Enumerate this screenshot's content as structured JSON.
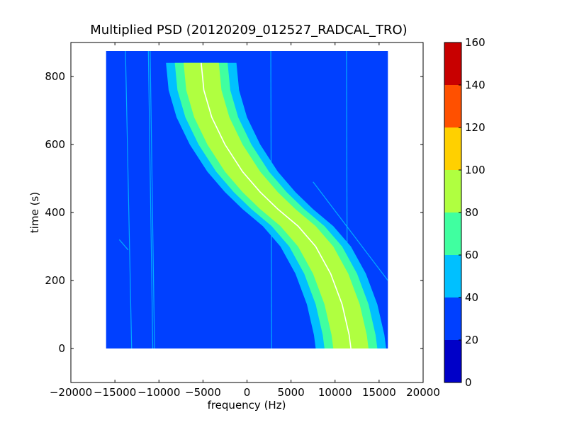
{
  "chart_data": {
    "type": "heatmap",
    "title": "Multiplied PSD (20120209_012527_RADCAL_TRO)",
    "xlabel": "frequency (Hz)",
    "ylabel": "time (s)",
    "xlim": [
      -20000,
      20000
    ],
    "ylim": [
      -100,
      900
    ],
    "x_ticks": [
      -20000,
      -15000,
      -10000,
      -5000,
      0,
      5000,
      10000,
      15000,
      20000
    ],
    "x_tick_labels": [
      "−20000",
      "−15000",
      "−10000",
      "−5000",
      "0",
      "5000",
      "10000",
      "15000",
      "20000"
    ],
    "y_ticks": [
      0,
      200,
      400,
      600,
      800
    ],
    "y_tick_labels": [
      "0",
      "200",
      "400",
      "600",
      "800"
    ],
    "data_extent": {
      "x": [
        -16000,
        16000
      ],
      "y": [
        0,
        875
      ]
    },
    "background_level": 30,
    "colorbar": {
      "range": [
        0,
        160
      ],
      "ticks": [
        0,
        20,
        40,
        60,
        80,
        100,
        120,
        140,
        160
      ],
      "tick_labels": [
        "0",
        "20",
        "40",
        "60",
        "80",
        "100",
        "120",
        "140",
        "160"
      ],
      "colors": [
        "#0000c8",
        "#0040ff",
        "#00c0ff",
        "#40ffa0",
        "#b0ff40",
        "#ffd000",
        "#ff5000",
        "#c80000"
      ]
    },
    "main_track": {
      "description_levels": [
        40,
        60,
        80,
        100
      ],
      "center_points": [
        [
          -5200,
          840
        ],
        [
          -4900,
          760
        ],
        [
          -4000,
          680
        ],
        [
          -2500,
          600
        ],
        [
          -500,
          520
        ],
        [
          1500,
          460
        ],
        [
          3500,
          410
        ],
        [
          5800,
          360
        ],
        [
          7800,
          300
        ],
        [
          9500,
          220
        ],
        [
          10800,
          130
        ],
        [
          11600,
          40
        ],
        [
          11800,
          0
        ]
      ],
      "half_widths": {
        "level_40": 4000,
        "level_60": 3000,
        "level_80": 2000
      }
    },
    "faint_lines": [
      {
        "x_top": -13800,
        "x_bottom": -13100
      },
      {
        "x_top": -11200,
        "x_bottom": -10700
      },
      {
        "x_top": -11000,
        "x_bottom": -10500
      },
      {
        "x_top": 2700,
        "x_bottom": 2800
      },
      {
        "x_top": 11300,
        "x_bottom": 11400
      }
    ],
    "diagonal_lines": [
      {
        "start": [
          7500,
          490
        ],
        "end": [
          16000,
          200
        ]
      },
      {
        "start": [
          -14500,
          320
        ],
        "end": [
          -13500,
          290
        ]
      }
    ]
  }
}
